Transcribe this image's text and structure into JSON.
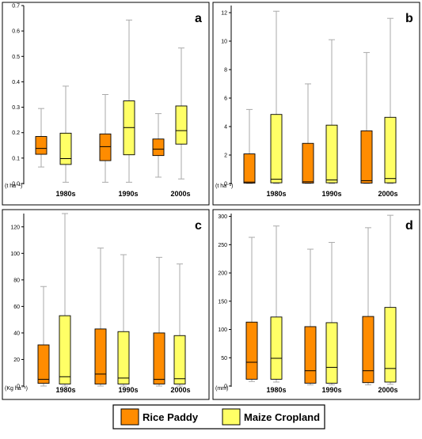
{
  "colors": {
    "rice": "#ff8c00",
    "maize": "#ffff66",
    "whisker": "#aaaaaa",
    "frame": "#000000"
  },
  "legend": {
    "rice_label": "Rice Paddy",
    "maize_label": "Maize Cropland"
  },
  "chart_data": [
    {
      "type": "box",
      "panel_label": "a",
      "unit_label": "(t ha⁻¹)",
      "categories": [
        "1980s",
        "1990s",
        "2000s"
      ],
      "ylim": [
        0,
        0.7
      ],
      "yticks": [
        0,
        0.1,
        0.2,
        0.3,
        0.4,
        0.5,
        0.6,
        0.7
      ],
      "ytick_labels": [
        "0.0",
        "0.1",
        "0.2",
        "0.3",
        "0.4",
        "0.5",
        "0.6",
        "0.7"
      ],
      "series": [
        {
          "name": "Rice Paddy",
          "boxes": [
            {
              "min": 0.065,
              "q1": 0.115,
              "median": 0.138,
              "q3": 0.185,
              "max": 0.295
            },
            {
              "min": 0.005,
              "q1": 0.09,
              "median": 0.145,
              "q3": 0.195,
              "max": 0.35
            },
            {
              "min": 0.025,
              "q1": 0.11,
              "median": 0.135,
              "q3": 0.175,
              "max": 0.275
            }
          ]
        },
        {
          "name": "Maize Cropland",
          "boxes": [
            {
              "min": 0.005,
              "q1": 0.075,
              "median": 0.098,
              "q3": 0.198,
              "max": 0.383
            },
            {
              "min": 0.005,
              "q1": 0.113,
              "median": 0.22,
              "q3": 0.325,
              "max": 0.643
            },
            {
              "min": 0.018,
              "q1": 0.155,
              "median": 0.208,
              "q3": 0.305,
              "max": 0.533
            }
          ]
        }
      ]
    },
    {
      "type": "box",
      "panel_label": "b",
      "unit_label": "(t ha⁻¹)",
      "categories": [
        "1980s",
        "1990s",
        "2000s"
      ],
      "ylim": [
        0,
        12.5
      ],
      "yticks": [
        0,
        2,
        4,
        6,
        8,
        10,
        12
      ],
      "ytick_labels": [
        "0",
        "2",
        "4",
        "6",
        "8",
        "10",
        "12"
      ],
      "series": [
        {
          "name": "Rice Paddy",
          "boxes": [
            {
              "min": 0,
              "q1": 0.03,
              "median": 0.1,
              "q3": 2.08,
              "max": 5.2
            },
            {
              "min": 0,
              "q1": 0.03,
              "median": 0.12,
              "q3": 2.82,
              "max": 7.0
            },
            {
              "min": 0,
              "q1": 0.03,
              "median": 0.2,
              "q3": 3.7,
              "max": 9.2
            }
          ]
        },
        {
          "name": "Maize Cropland",
          "boxes": [
            {
              "min": 0,
              "q1": 0.05,
              "median": 0.3,
              "q3": 4.85,
              "max": 12.1
            },
            {
              "min": 0,
              "q1": 0.05,
              "median": 0.25,
              "q3": 4.1,
              "max": 10.1
            },
            {
              "min": 0,
              "q1": 0.05,
              "median": 0.35,
              "q3": 4.65,
              "max": 11.6
            }
          ]
        }
      ]
    },
    {
      "type": "box",
      "panel_label": "c",
      "unit_label": "(Kg ha⁻¹)",
      "categories": [
        "1980s",
        "1990s",
        "2000s"
      ],
      "ylim": [
        0,
        130
      ],
      "yticks": [
        0,
        20,
        40,
        60,
        80,
        100,
        120
      ],
      "ytick_labels": [
        "0",
        "20",
        "40",
        "60",
        "80",
        "100",
        "120"
      ],
      "series": [
        {
          "name": "Rice Paddy",
          "boxes": [
            {
              "min": 0,
              "q1": 2,
              "median": 5,
              "q3": 31,
              "max": 75
            },
            {
              "min": 0,
              "q1": 1.5,
              "median": 9,
              "q3": 43,
              "max": 104
            },
            {
              "min": 0,
              "q1": 1.5,
              "median": 5,
              "q3": 40,
              "max": 97
            }
          ]
        },
        {
          "name": "Maize Cropland",
          "boxes": [
            {
              "min": 0,
              "q1": 1.5,
              "median": 7,
              "q3": 53,
              "max": 130
            },
            {
              "min": 0,
              "q1": 1.5,
              "median": 6,
              "q3": 41,
              "max": 99
            },
            {
              "min": 0,
              "q1": 1.5,
              "median": 5.5,
              "q3": 38,
              "max": 92
            }
          ]
        }
      ]
    },
    {
      "type": "box",
      "panel_label": "d",
      "unit_label": "(mm)",
      "categories": [
        "1980s",
        "1990s",
        "2000s"
      ],
      "ylim": [
        0,
        305
      ],
      "yticks": [
        0,
        50,
        100,
        150,
        200,
        250,
        300
      ],
      "ytick_labels": [
        "0",
        "50",
        "100",
        "150",
        "200",
        "250",
        "300"
      ],
      "series": [
        {
          "name": "Rice Paddy",
          "boxes": [
            {
              "min": 8,
              "q1": 12,
              "median": 42,
              "q3": 113,
              "max": 263
            },
            {
              "min": 2,
              "q1": 5,
              "median": 27,
              "q3": 105,
              "max": 242
            },
            {
              "min": 2,
              "q1": 6,
              "median": 27,
              "q3": 123,
              "max": 280
            }
          ]
        },
        {
          "name": "Maize Cropland",
          "boxes": [
            {
              "min": 7,
              "q1": 12,
              "median": 49,
              "q3": 122,
              "max": 283
            },
            {
              "min": 2,
              "q1": 5,
              "median": 33,
              "q3": 112,
              "max": 254
            },
            {
              "min": 3,
              "q1": 7,
              "median": 31,
              "q3": 139,
              "max": 302
            }
          ]
        }
      ]
    }
  ]
}
